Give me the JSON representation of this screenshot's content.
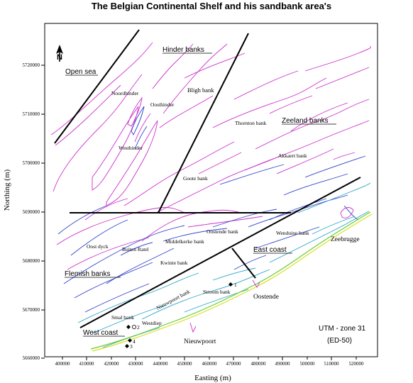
{
  "title": "The Belgian Continental Shelf and his sandbank area's",
  "axes": {
    "xlabel": "Easting (m)",
    "ylabel": "Northing (m)",
    "x_ticks": [
      "400000",
      "410000",
      "420000",
      "430000",
      "440000",
      "450000",
      "460000",
      "470000",
      "480000",
      "490000",
      "500000",
      "510000",
      "520000"
    ],
    "y_ticks": [
      "5720000",
      "5710000",
      "5700000",
      "5690000",
      "5680000",
      "5670000",
      "5660000"
    ]
  },
  "north_arrow": {
    "letter": "N",
    "icon": "north-arrow-icon"
  },
  "regions": [
    {
      "id": "open-sea",
      "label": "Open sea"
    },
    {
      "id": "hinder-banks",
      "label": "Hinder banks"
    },
    {
      "id": "zeeland-banks",
      "label": "Zeeland banks"
    },
    {
      "id": "flemish-banks",
      "label": "Flemish banks"
    },
    {
      "id": "east-coast",
      "label": "East coast"
    },
    {
      "id": "west-coast",
      "label": "West coast"
    }
  ],
  "banks": [
    {
      "id": "noordhinder",
      "label": "Noordhinder"
    },
    {
      "id": "oosthinder",
      "label": "Oosthinder"
    },
    {
      "id": "bligh-bank",
      "label": "Bligh bank"
    },
    {
      "id": "thornton-bank",
      "label": "Thornton bank"
    },
    {
      "id": "westhinder",
      "label": "Westhinder"
    },
    {
      "id": "akkaert-bank",
      "label": "Akkaert bank"
    },
    {
      "id": "goote-bank",
      "label": "Goote bank"
    },
    {
      "id": "oostende-bank",
      "label": "Oostende bank"
    },
    {
      "id": "wenduine-bank",
      "label": "Wenduine bank"
    },
    {
      "id": "oost-dyck",
      "label": "Oost dyck"
    },
    {
      "id": "buiten-ratel",
      "label": "Buiten Ratel"
    },
    {
      "id": "middelkerke-bank",
      "label": "Middelkerke bank"
    },
    {
      "id": "kwinte-bank",
      "label": "Kwinte bank"
    },
    {
      "id": "nieuwpoort-bank",
      "label": "Nieuwpoort bank"
    },
    {
      "id": "stroom-bank",
      "label": "Stroom bank"
    },
    {
      "id": "smal-bank",
      "label": "Smal bank"
    },
    {
      "id": "westdiep",
      "label": "Westdiep"
    }
  ],
  "places": [
    {
      "id": "zeebrugge",
      "label": "Zeebrugge"
    },
    {
      "id": "oostende",
      "label": "Oostende"
    },
    {
      "id": "nieuwpoort",
      "label": "Nieuwpoort"
    }
  ],
  "stations": [
    {
      "id": "station-1",
      "label": "1"
    },
    {
      "id": "station-2",
      "label": "2"
    },
    {
      "id": "station-3",
      "label": "3"
    },
    {
      "id": "station-4",
      "label": "4"
    }
  ],
  "projection": {
    "line1": "UTM - zone 31",
    "line2": "(ED-50)"
  },
  "colors": {
    "outer_banks": "#cc33cc",
    "mid_banks": "#3344cc",
    "inner_banks": "#2aa6c8",
    "coast_green": "#66cc33",
    "coast_yellow": "#dddd22",
    "division_lines": "#000000"
  }
}
